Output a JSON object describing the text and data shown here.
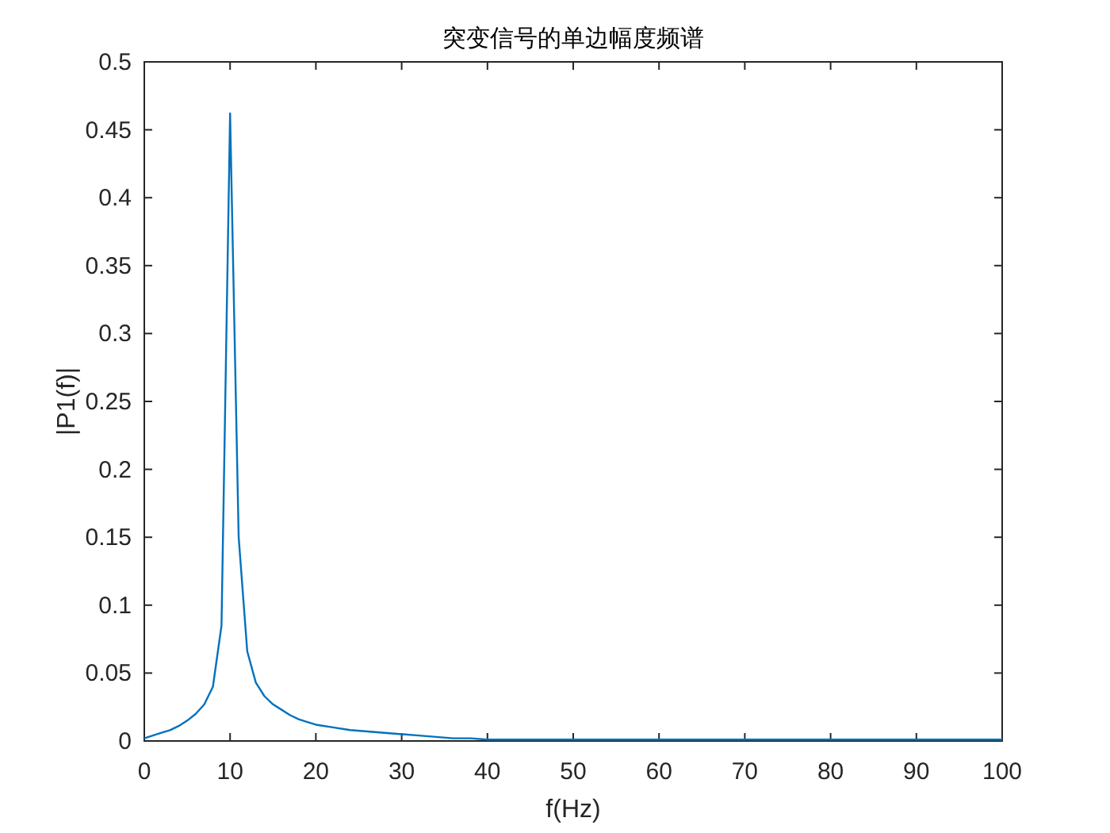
{
  "chart_data": {
    "type": "line",
    "title": "突变信号的单边幅度频谱",
    "xlabel": "f(Hz)",
    "ylabel": "|P1(f)|",
    "x": [
      0,
      1,
      2,
      3,
      4,
      5,
      6,
      7,
      8,
      9,
      10,
      11,
      12,
      13,
      14,
      15,
      16,
      17,
      18,
      19,
      20,
      22,
      24,
      26,
      28,
      30,
      32,
      34,
      36,
      38,
      40,
      45,
      50,
      55,
      60,
      65,
      70,
      75,
      80,
      85,
      90,
      95,
      100
    ],
    "series": [
      {
        "color": "#0072bd",
        "values": [
          0.002,
          0.004,
          0.006,
          0.008,
          0.011,
          0.015,
          0.02,
          0.027,
          0.04,
          0.085,
          0.462,
          0.15,
          0.066,
          0.043,
          0.033,
          0.027,
          0.023,
          0.019,
          0.016,
          0.014,
          0.012,
          0.01,
          0.008,
          0.007,
          0.006,
          0.005,
          0.004,
          0.003,
          0.002,
          0.002,
          0.001,
          0.001,
          0.001,
          0.001,
          0.001,
          0.001,
          0.001,
          0.001,
          0.001,
          0.001,
          0.001,
          0.001,
          0.001
        ]
      }
    ],
    "xlim": [
      0,
      100
    ],
    "ylim": [
      0,
      0.5
    ],
    "xticks": [
      0,
      10,
      20,
      30,
      40,
      50,
      60,
      70,
      80,
      90,
      100
    ],
    "yticks": [
      0,
      0.05,
      0.1,
      0.15,
      0.2,
      0.25,
      0.3,
      0.35,
      0.4,
      0.45,
      0.5
    ],
    "grid": false
  }
}
